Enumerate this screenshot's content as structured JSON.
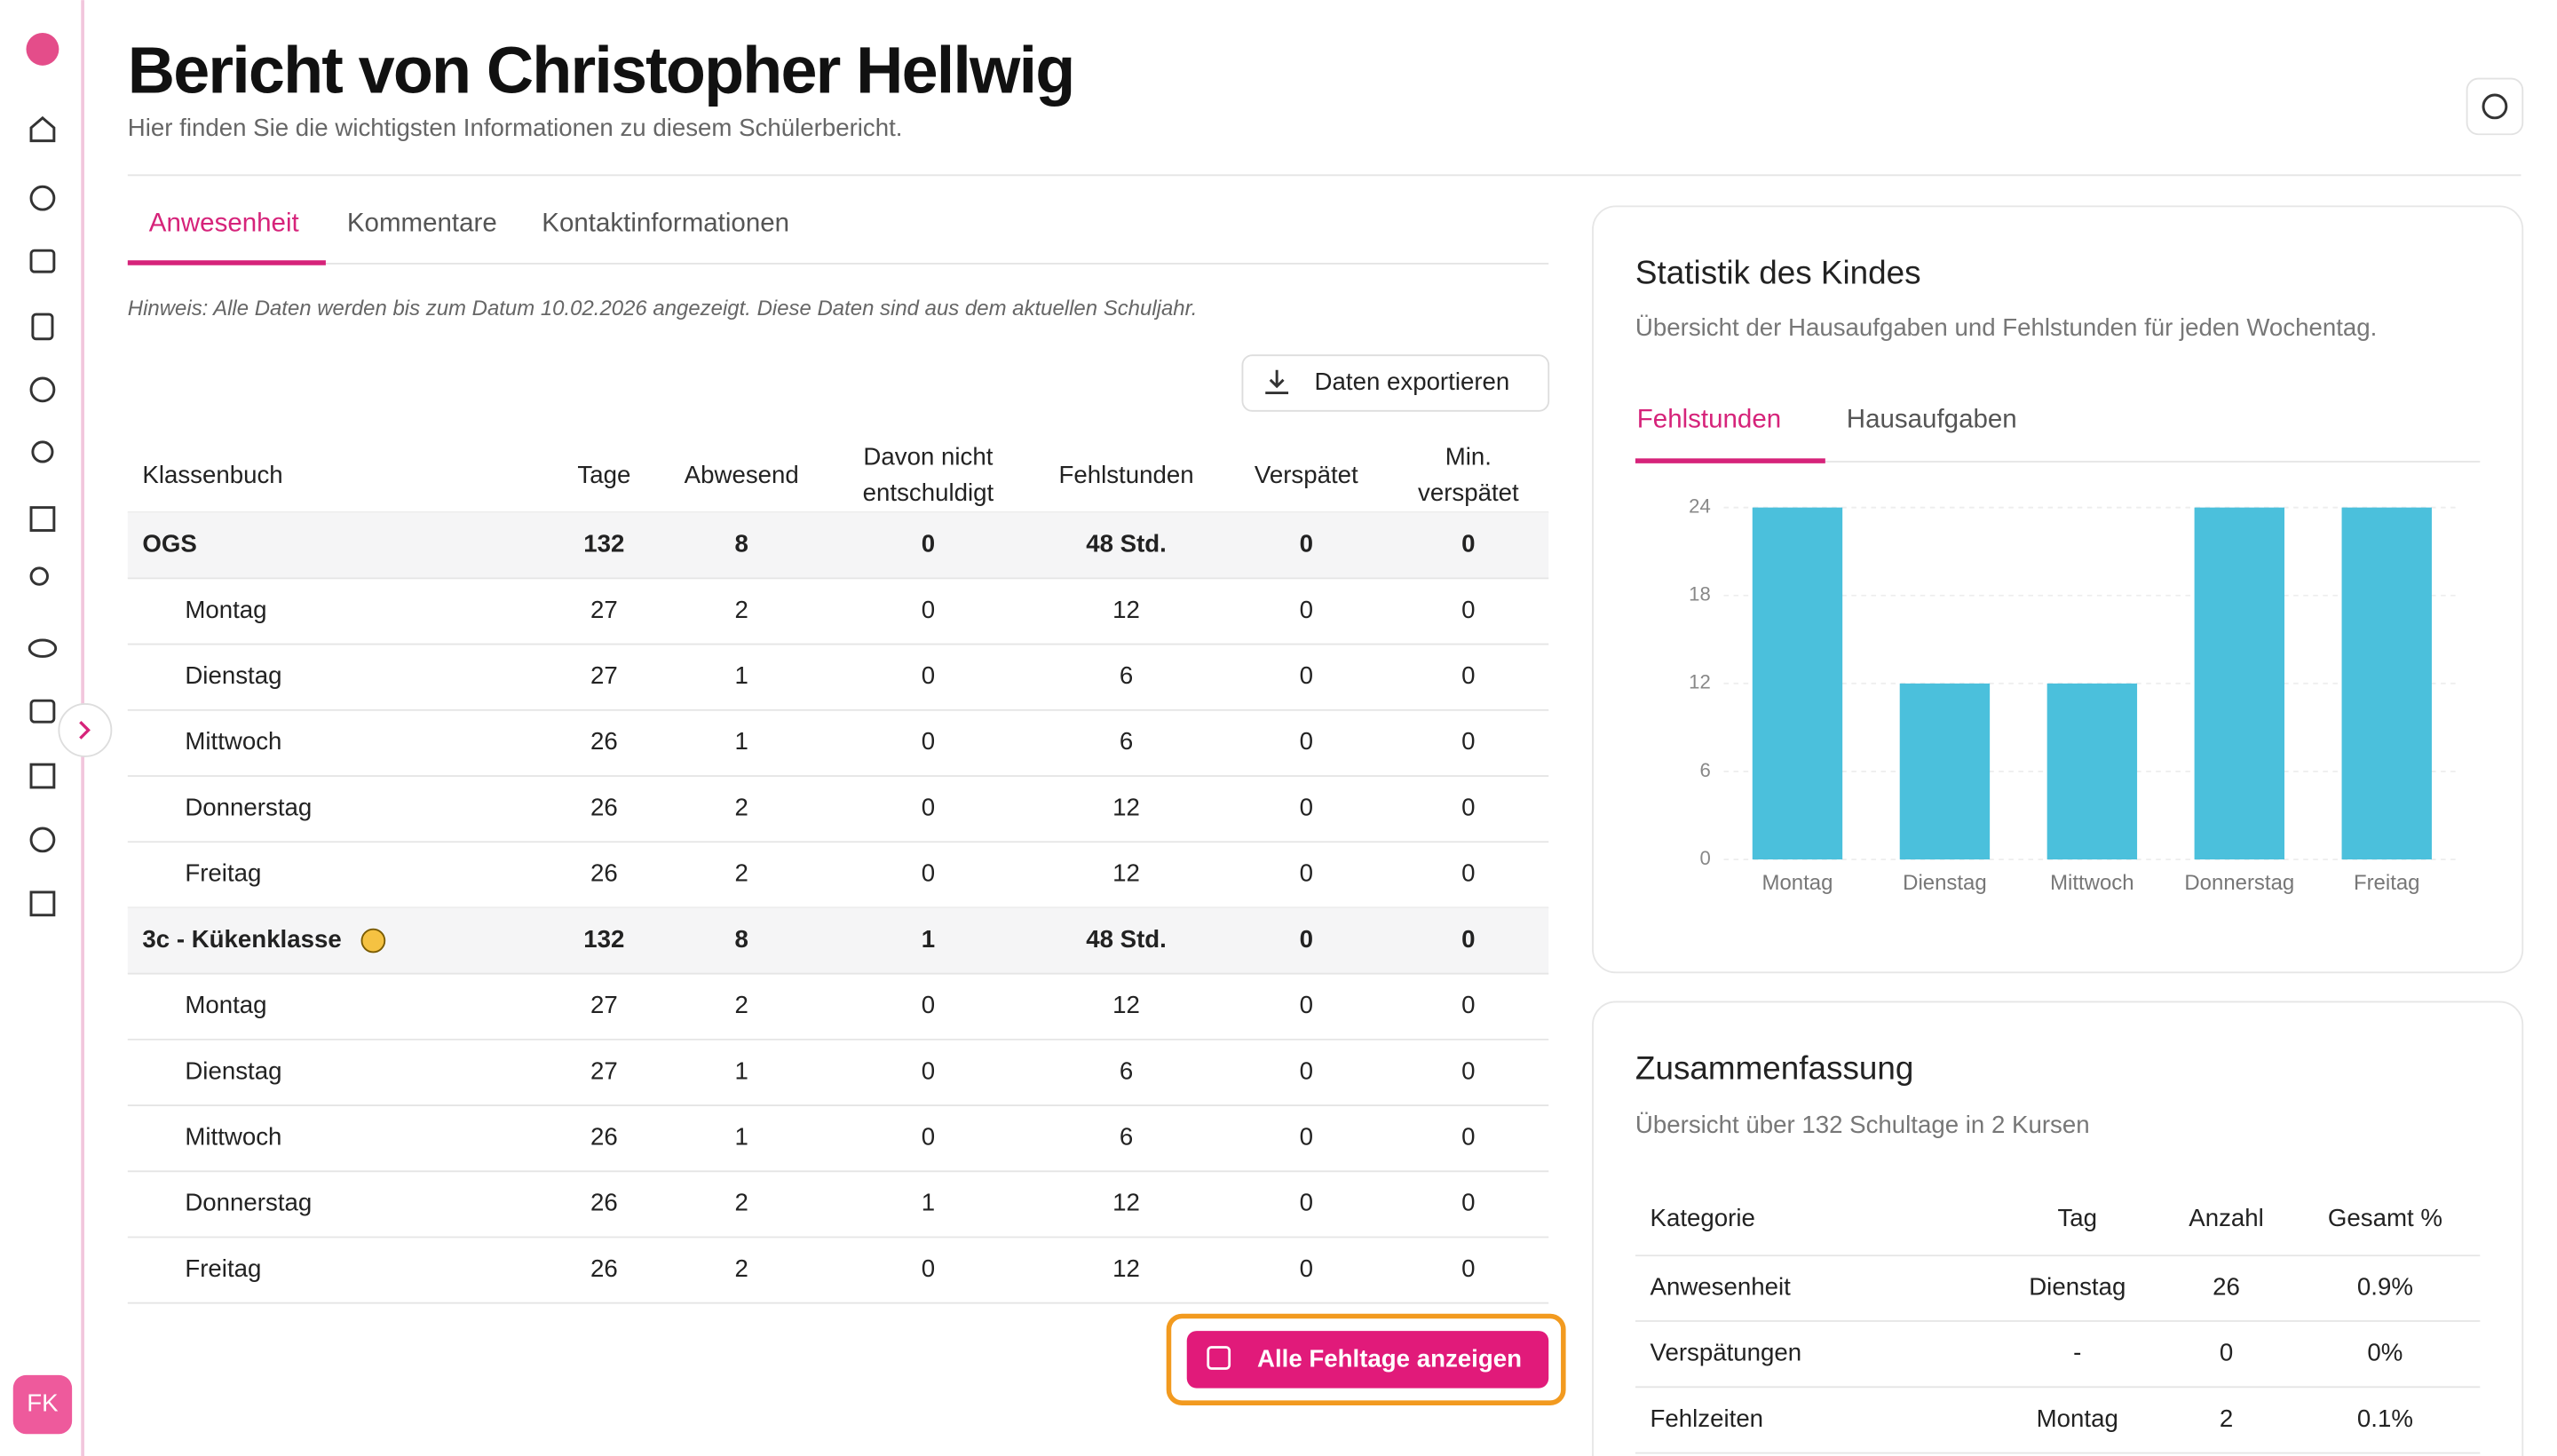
{
  "header": {
    "title": "Bericht von Christopher Hellwig",
    "subtitle": "Hier finden Sie die wichtigsten Informationen zu diesem Schülerbericht."
  },
  "tabs": [
    "Anwesenheit",
    "Kommentare",
    "Kontaktinformationen"
  ],
  "note": "Hinweis: Alle Daten werden bis zum Datum 10.02.2026 angezeigt. Diese Daten sind aus dem aktuellen Schuljahr.",
  "export_button": "Daten exportieren",
  "table": {
    "columns": [
      "Klassenbuch",
      "Tage",
      "Abwesend",
      "Davon nicht entschuldigt",
      "Fehlstunden",
      "Verspätet",
      "Min. verspätet"
    ],
    "groups": [
      {
        "name": "OGS",
        "values": [
          "132",
          "8",
          "0",
          "48 Std.",
          "0",
          "0"
        ],
        "rows": [
          [
            "Montag",
            "27",
            "2",
            "0",
            "12",
            "0",
            "0"
          ],
          [
            "Dienstag",
            "27",
            "1",
            "0",
            "6",
            "0",
            "0"
          ],
          [
            "Mittwoch",
            "26",
            "1",
            "0",
            "6",
            "0",
            "0"
          ],
          [
            "Donnerstag",
            "26",
            "2",
            "0",
            "12",
            "0",
            "0"
          ],
          [
            "Freitag",
            "26",
            "2",
            "0",
            "12",
            "0",
            "0"
          ]
        ]
      },
      {
        "name": "3c - Kükenklasse",
        "values": [
          "132",
          "8",
          "1",
          "48 Std.",
          "0",
          "0"
        ],
        "rows": [
          [
            "Montag",
            "27",
            "2",
            "0",
            "12",
            "0",
            "0"
          ],
          [
            "Dienstag",
            "27",
            "1",
            "0",
            "6",
            "0",
            "0"
          ],
          [
            "Mittwoch",
            "26",
            "1",
            "0",
            "6",
            "0",
            "0"
          ],
          [
            "Donnerstag",
            "26",
            "2",
            "1",
            "12",
            "0",
            "0"
          ],
          [
            "Freitag",
            "26",
            "2",
            "0",
            "12",
            "0",
            "0"
          ]
        ]
      }
    ]
  },
  "action_button": "Alle Fehltage anzeigen",
  "avatar": "FK",
  "stats": {
    "title": "Statistik des Kindes",
    "subtitle": "Übersicht der Hausaufgaben und Fehlstunden für jeden Wochentag.",
    "tabs": [
      "Fehlstunden",
      "Hausaufgaben"
    ]
  },
  "chart_data": {
    "type": "bar",
    "categories": [
      "Montag",
      "Dienstag",
      "Mittwoch",
      "Donnerstag",
      "Freitag"
    ],
    "values": [
      24,
      12,
      12,
      24,
      24
    ],
    "color": "#4bc0dc",
    "ylim": [
      0,
      24
    ],
    "yticks": [
      0,
      6,
      12,
      18,
      24
    ],
    "grid": true
  },
  "summary": {
    "title": "Zusammenfassung",
    "subtitle": "Übersicht über 132 Schultage in 2 Kursen",
    "columns": [
      "Kategorie",
      "Tag",
      "Anzahl",
      "Gesamt %"
    ],
    "rows": [
      [
        "Anwesenheit",
        "Dienstag",
        "26",
        "0.9%"
      ],
      [
        "Verspätungen",
        "-",
        "0",
        "0%"
      ],
      [
        "Fehlzeiten",
        "Montag",
        "2",
        "0.1%"
      ]
    ]
  }
}
